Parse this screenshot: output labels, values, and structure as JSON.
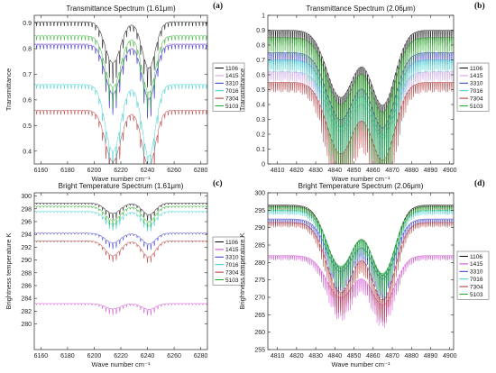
{
  "chart_data": [
    {
      "id": "a",
      "type": "line",
      "panel_label": "(a)",
      "title": "Transmittance Spectrum (1.61μm)",
      "xlabel": "Wave number cm⁻¹",
      "ylabel": "Transmittance",
      "xlim": [
        6155,
        6285
      ],
      "ylim": [
        0.35,
        0.93
      ],
      "xticks": [
        6160,
        6180,
        6200,
        6220,
        6240,
        6260,
        6280
      ],
      "yticks": [
        0.4,
        0.5,
        0.6,
        0.7,
        0.8,
        0.9
      ],
      "legend_position": "right",
      "series": [
        {
          "name": "1106",
          "color": "#000000",
          "baseline": 0.905,
          "bands": [
            [
              6214,
              8,
              0.16
            ],
            [
              6241,
              7,
              0.18
            ]
          ],
          "line_depth": 0.05,
          "spacing": 2.6
        },
        {
          "name": "1415",
          "color": "#c8a0e6",
          "baseline": 0.82,
          "bands": [
            [
              6214,
              8,
              0.2
            ],
            [
              6241,
              7,
              0.22
            ]
          ],
          "line_depth": 0.05,
          "spacing": 2.6
        },
        {
          "name": "3310",
          "color": "#3333cc",
          "baseline": 0.815,
          "bands": [
            [
              6214,
              8,
              0.19
            ],
            [
              6241,
              7,
              0.21
            ]
          ],
          "line_depth": 0.05,
          "spacing": 2.6
        },
        {
          "name": "7016",
          "color": "#33cccc",
          "baseline": 0.66,
          "bands": [
            [
              6214,
              8,
              0.26
            ],
            [
              6241,
              7,
              0.28
            ]
          ],
          "line_depth": 0.05,
          "spacing": 2.6
        },
        {
          "name": "7304",
          "color": "#b03030",
          "baseline": 0.56,
          "bands": [
            [
              6214,
              8,
              0.2
            ],
            [
              6241,
              7,
              0.22
            ]
          ],
          "line_depth": 0.05,
          "spacing": 2.6
        },
        {
          "name": "5103",
          "color": "#22aa22",
          "baseline": 0.85,
          "bands": [
            [
              6214,
              8,
              0.2
            ],
            [
              6241,
              7,
              0.22
            ]
          ],
          "line_depth": 0.05,
          "spacing": 2.6
        }
      ]
    },
    {
      "id": "b",
      "type": "line",
      "panel_label": "(b)",
      "title": "Transmittance Spectrum (2.06μm)",
      "xlabel": "Wave number cm⁻¹",
      "ylabel": "Transmittance",
      "xlim": [
        4805,
        4902
      ],
      "ylim": [
        0,
        1.0
      ],
      "xticks": [
        4810,
        4820,
        4830,
        4840,
        4850,
        4860,
        4870,
        4880,
        4890,
        4900
      ],
      "yticks": [
        0,
        0.1,
        0.2,
        0.3,
        0.4,
        0.5,
        0.6,
        0.7,
        0.8,
        0.9,
        1
      ],
      "legend_position": "right",
      "series": [
        {
          "name": "1106",
          "color": "#000000",
          "baseline": 0.9,
          "bands": [
            [
              4843,
              10,
              0.45
            ],
            [
              4865,
              9,
              0.5
            ]
          ],
          "line_depth": 0.3,
          "spacing": 1.0
        },
        {
          "name": "1415",
          "color": "#c8a0e6",
          "baseline": 0.62,
          "bands": [
            [
              4843,
              10,
              0.4
            ],
            [
              4865,
              9,
              0.44
            ]
          ],
          "line_depth": 0.2,
          "spacing": 1.0
        },
        {
          "name": "3310",
          "color": "#3333cc",
          "baseline": 0.75,
          "bands": [
            [
              4843,
              10,
              0.45
            ],
            [
              4865,
              9,
              0.5
            ]
          ],
          "line_depth": 0.25,
          "spacing": 1.0
        },
        {
          "name": "7016",
          "color": "#33cccc",
          "baseline": 0.7,
          "bands": [
            [
              4843,
              10,
              0.45
            ],
            [
              4865,
              9,
              0.5
            ]
          ],
          "line_depth": 0.25,
          "spacing": 1.0
        },
        {
          "name": "7304",
          "color": "#b03030",
          "baseline": 0.55,
          "bands": [
            [
              4843,
              10,
              0.48
            ],
            [
              4865,
              9,
              0.52
            ]
          ],
          "line_depth": 0.2,
          "spacing": 1.0
        },
        {
          "name": "5103",
          "color": "#22aa22",
          "baseline": 0.85,
          "bands": [
            [
              4843,
              10,
              0.45
            ],
            [
              4865,
              9,
              0.5
            ]
          ],
          "line_depth": 0.35,
          "spacing": 1.0
        }
      ]
    },
    {
      "id": "c",
      "type": "line",
      "panel_label": "(c)",
      "title": "Bright Temperature Spectrum (1.61μm)",
      "xlabel": "Wave number cm⁻¹",
      "ylabel": "Brightness temperature K",
      "xlim": [
        6155,
        6285
      ],
      "ylim": [
        276,
        300.5
      ],
      "xticks": [
        6160,
        6180,
        6200,
        6220,
        6240,
        6260,
        6280
      ],
      "yticks": [
        280,
        282,
        284,
        286,
        288,
        290,
        292,
        294,
        296,
        298,
        300
      ],
      "legend_position": "right",
      "series": [
        {
          "name": "1106",
          "color": "#000000",
          "baseline": 298.9,
          "bands": [
            [
              6214,
              8,
              1.6
            ],
            [
              6241,
              7,
              1.8
            ]
          ],
          "line_depth": 0.6,
          "spacing": 2.6
        },
        {
          "name": "1415",
          "color": "#cc44cc",
          "baseline": 283.2,
          "bands": [
            [
              6214,
              8,
              0.8
            ],
            [
              6241,
              7,
              0.9
            ]
          ],
          "line_depth": 0.6,
          "spacing": 2.6
        },
        {
          "name": "3310",
          "color": "#3333cc",
          "baseline": 294.2,
          "bands": [
            [
              6214,
              8,
              1.5
            ],
            [
              6241,
              7,
              1.7
            ]
          ],
          "line_depth": 0.6,
          "spacing": 2.6
        },
        {
          "name": "7016",
          "color": "#33cccc",
          "baseline": 297.6,
          "bands": [
            [
              6214,
              8,
              2.0
            ],
            [
              6241,
              7,
              2.2
            ]
          ],
          "line_depth": 0.6,
          "spacing": 2.6
        },
        {
          "name": "7304",
          "color": "#b03030",
          "baseline": 293.0,
          "bands": [
            [
              6214,
              8,
              2.3
            ],
            [
              6241,
              7,
              2.5
            ]
          ],
          "line_depth": 0.6,
          "spacing": 2.6
        },
        {
          "name": "5103",
          "color": "#22aa22",
          "baseline": 298.4,
          "bands": [
            [
              6214,
              8,
              2.2
            ],
            [
              6241,
              7,
              2.4
            ]
          ],
          "line_depth": 0.6,
          "spacing": 2.6
        }
      ]
    },
    {
      "id": "d",
      "type": "line",
      "panel_label": "(d)",
      "title": "Bright Temperature Spectrum (2.06μm)",
      "xlabel": "Wave number cm⁻¹",
      "ylabel": "Brightness temperature K",
      "xlim": [
        4805,
        4902
      ],
      "ylim": [
        255,
        300
      ],
      "xticks": [
        4810,
        4820,
        4830,
        4840,
        4850,
        4860,
        4870,
        4880,
        4890,
        4900
      ],
      "yticks": [
        255,
        260,
        265,
        270,
        275,
        280,
        285,
        290,
        295,
        300
      ],
      "legend_position": "right",
      "series": [
        {
          "name": "1106",
          "color": "#000000",
          "baseline": 296.5,
          "bands": [
            [
              4843,
              10,
              18
            ],
            [
              4865,
              9,
              20
            ]
          ],
          "line_depth": 5,
          "spacing": 1.0
        },
        {
          "name": "1415",
          "color": "#cc44cc",
          "baseline": 282.0,
          "bands": [
            [
              4843,
              10,
              12
            ],
            [
              4865,
              9,
              14
            ]
          ],
          "line_depth": 4,
          "spacing": 1.0
        },
        {
          "name": "3310",
          "color": "#3333cc",
          "baseline": 292.5,
          "bands": [
            [
              4843,
              10,
              15
            ],
            [
              4865,
              9,
              17
            ]
          ],
          "line_depth": 4,
          "spacing": 1.0
        },
        {
          "name": "7016",
          "color": "#33cccc",
          "baseline": 295.0,
          "bands": [
            [
              4843,
              10,
              16
            ],
            [
              4865,
              9,
              18
            ]
          ],
          "line_depth": 4,
          "spacing": 1.0
        },
        {
          "name": "7304",
          "color": "#b03030",
          "baseline": 291.5,
          "bands": [
            [
              4843,
              10,
              20
            ],
            [
              4865,
              9,
              22
            ]
          ],
          "line_depth": 4,
          "spacing": 1.0
        },
        {
          "name": "5103",
          "color": "#22aa22",
          "baseline": 296.0,
          "bands": [
            [
              4843,
              10,
              17
            ],
            [
              4865,
              9,
              19
            ]
          ],
          "line_depth": 4,
          "spacing": 1.0
        }
      ]
    }
  ]
}
